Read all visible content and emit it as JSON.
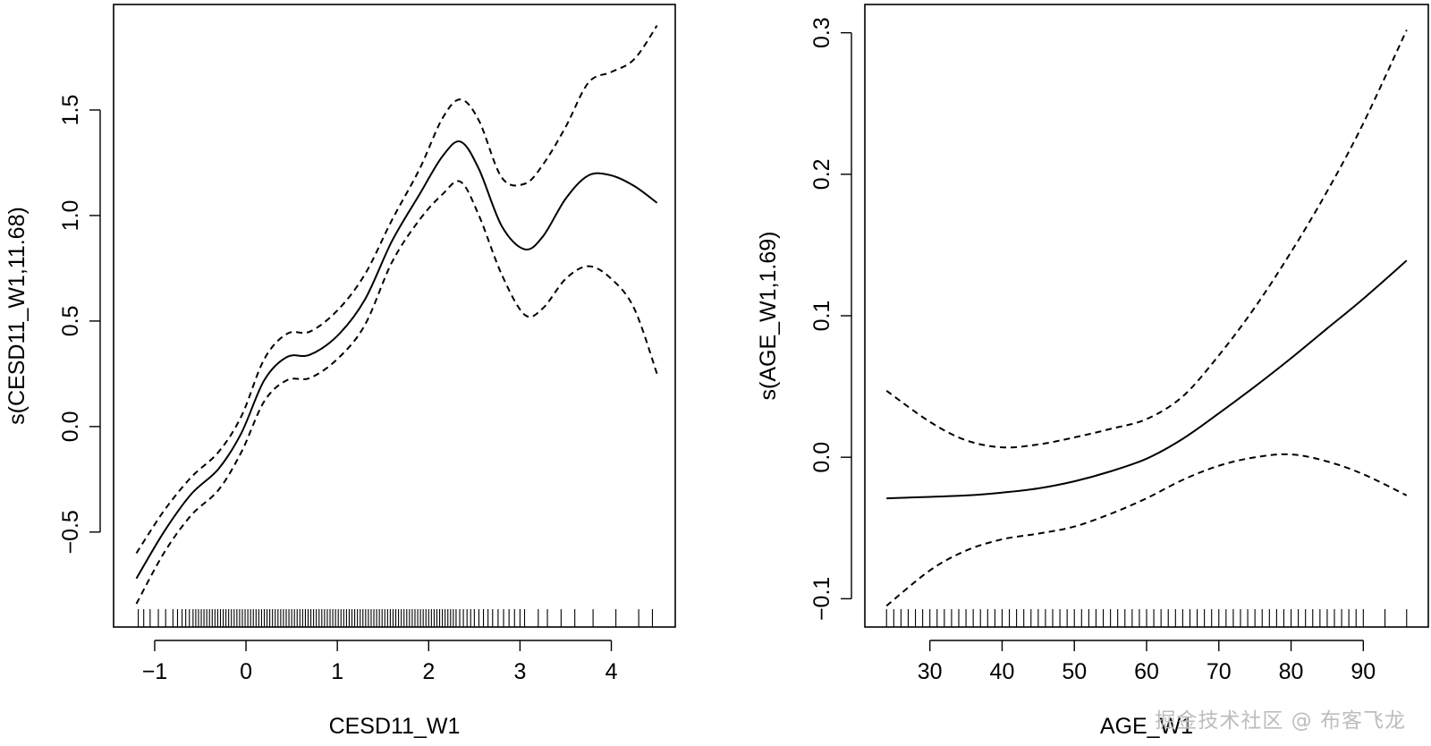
{
  "watermark": "掘金技术社区 @ 布客飞龙",
  "chart_data": [
    {
      "type": "line",
      "title": "",
      "xlabel": "CESD11_W1",
      "ylabel": "s(CESD11_W1,11.68)",
      "xlim": [
        -1.45,
        4.7
      ],
      "ylim": [
        -0.95,
        2.0
      ],
      "xticks": [
        -1,
        0,
        1,
        2,
        3,
        4
      ],
      "xtick_labels": [
        "−1",
        "0",
        "1",
        "2",
        "3",
        "4"
      ],
      "yticks": [
        -0.5,
        0.0,
        0.5,
        1.0,
        1.5
      ],
      "ytick_labels": [
        "−0.5",
        "0.0",
        "0.5",
        "1.0",
        "1.5"
      ],
      "x": [
        -1.2,
        -0.9,
        -0.6,
        -0.3,
        -0.05,
        0.2,
        0.45,
        0.7,
        1.0,
        1.3,
        1.6,
        1.9,
        2.15,
        2.35,
        2.55,
        2.8,
        3.05,
        3.25,
        3.5,
        3.75,
        4.0,
        4.25,
        4.5
      ],
      "series": [
        {
          "name": "fit",
          "style": "solid",
          "values": [
            -0.72,
            -0.5,
            -0.32,
            -0.2,
            -0.03,
            0.22,
            0.33,
            0.34,
            0.43,
            0.6,
            0.88,
            1.1,
            1.28,
            1.35,
            1.22,
            0.95,
            0.84,
            0.9,
            1.08,
            1.19,
            1.19,
            1.14,
            1.06
          ]
        },
        {
          "name": "upper",
          "style": "dashed",
          "values": [
            -0.6,
            -0.4,
            -0.24,
            -0.12,
            0.05,
            0.32,
            0.44,
            0.45,
            0.55,
            0.72,
            0.98,
            1.22,
            1.46,
            1.55,
            1.45,
            1.18,
            1.15,
            1.24,
            1.42,
            1.63,
            1.68,
            1.74,
            1.9
          ]
        },
        {
          "name": "lower",
          "style": "dashed",
          "values": [
            -0.84,
            -0.6,
            -0.42,
            -0.3,
            -0.12,
            0.12,
            0.22,
            0.23,
            0.32,
            0.48,
            0.78,
            0.98,
            1.1,
            1.16,
            1.0,
            0.72,
            0.53,
            0.56,
            0.7,
            0.76,
            0.7,
            0.56,
            0.25
          ]
        }
      ],
      "rug": [
        -1.18,
        -1.12,
        -1.05,
        -0.96,
        -0.88,
        -0.8,
        -0.75,
        -0.7,
        -0.66,
        -0.62,
        -0.58,
        -0.55,
        -0.52,
        -0.49,
        -0.46,
        -0.43,
        -0.4,
        -0.37,
        -0.34,
        -0.31,
        -0.28,
        -0.25,
        -0.22,
        -0.19,
        -0.16,
        -0.13,
        -0.1,
        -0.07,
        -0.04,
        -0.01,
        0.02,
        0.05,
        0.08,
        0.11,
        0.14,
        0.17,
        0.2,
        0.23,
        0.26,
        0.29,
        0.32,
        0.35,
        0.38,
        0.41,
        0.44,
        0.47,
        0.5,
        0.53,
        0.56,
        0.59,
        0.62,
        0.65,
        0.68,
        0.71,
        0.74,
        0.77,
        0.8,
        0.83,
        0.86,
        0.89,
        0.92,
        0.95,
        0.98,
        1.01,
        1.04,
        1.07,
        1.1,
        1.13,
        1.16,
        1.19,
        1.22,
        1.25,
        1.28,
        1.31,
        1.34,
        1.37,
        1.4,
        1.43,
        1.46,
        1.49,
        1.52,
        1.55,
        1.58,
        1.61,
        1.64,
        1.67,
        1.7,
        1.73,
        1.76,
        1.79,
        1.82,
        1.85,
        1.88,
        1.91,
        1.94,
        1.97,
        2.0,
        2.03,
        2.06,
        2.09,
        2.12,
        2.15,
        2.18,
        2.21,
        2.24,
        2.27,
        2.3,
        2.34,
        2.38,
        2.42,
        2.46,
        2.5,
        2.55,
        2.6,
        2.65,
        2.7,
        2.76,
        2.82,
        2.88,
        2.94,
        3.0,
        3.05,
        3.2,
        3.3,
        3.45,
        3.6,
        3.8,
        4.05,
        4.3,
        4.45
      ]
    },
    {
      "type": "line",
      "title": "",
      "xlabel": "AGE_W1",
      "ylabel": "s(AGE_W1,1.69)",
      "xlim": [
        21,
        99
      ],
      "ylim": [
        -0.12,
        0.32
      ],
      "xticks": [
        30,
        40,
        50,
        60,
        70,
        80,
        90
      ],
      "xtick_labels": [
        "30",
        "40",
        "50",
        "60",
        "70",
        "80",
        "90"
      ],
      "yticks": [
        -0.1,
        0.0,
        0.1,
        0.2,
        0.3
      ],
      "ytick_labels": [
        "−0.1",
        "0.0",
        "0.1",
        "0.2",
        "0.3"
      ],
      "x": [
        24,
        30,
        35,
        40,
        45,
        50,
        55,
        60,
        65,
        70,
        75,
        80,
        85,
        90,
        96
      ],
      "series": [
        {
          "name": "fit",
          "style": "solid",
          "values": [
            -0.029,
            -0.028,
            -0.027,
            -0.025,
            -0.022,
            -0.017,
            -0.01,
            -0.001,
            0.013,
            0.031,
            0.05,
            0.07,
            0.091,
            0.112,
            0.139
          ]
        },
        {
          "name": "upper",
          "style": "dashed",
          "values": [
            0.047,
            0.025,
            0.012,
            0.007,
            0.009,
            0.014,
            0.02,
            0.027,
            0.043,
            0.072,
            0.106,
            0.145,
            0.188,
            0.236,
            0.302
          ]
        },
        {
          "name": "lower",
          "style": "dashed",
          "values": [
            -0.105,
            -0.08,
            -0.066,
            -0.058,
            -0.054,
            -0.049,
            -0.04,
            -0.029,
            -0.016,
            -0.006,
            0.0,
            0.002,
            -0.003,
            -0.012,
            -0.027
          ]
        }
      ],
      "rug": [
        24,
        25,
        26,
        27,
        28,
        29,
        30,
        31,
        32,
        33,
        34,
        35,
        36,
        37,
        38,
        39,
        40,
        41,
        42,
        43,
        44,
        45,
        46,
        47,
        48,
        49,
        50,
        51,
        52,
        53,
        54,
        55,
        56,
        57,
        58,
        59,
        60,
        61,
        62,
        63,
        64,
        65,
        66,
        67,
        68,
        69,
        70,
        71,
        72,
        73,
        74,
        75,
        76,
        77,
        78,
        79,
        80,
        81,
        82,
        83,
        84,
        85,
        86,
        87,
        88,
        89,
        90,
        93,
        96
      ]
    }
  ]
}
